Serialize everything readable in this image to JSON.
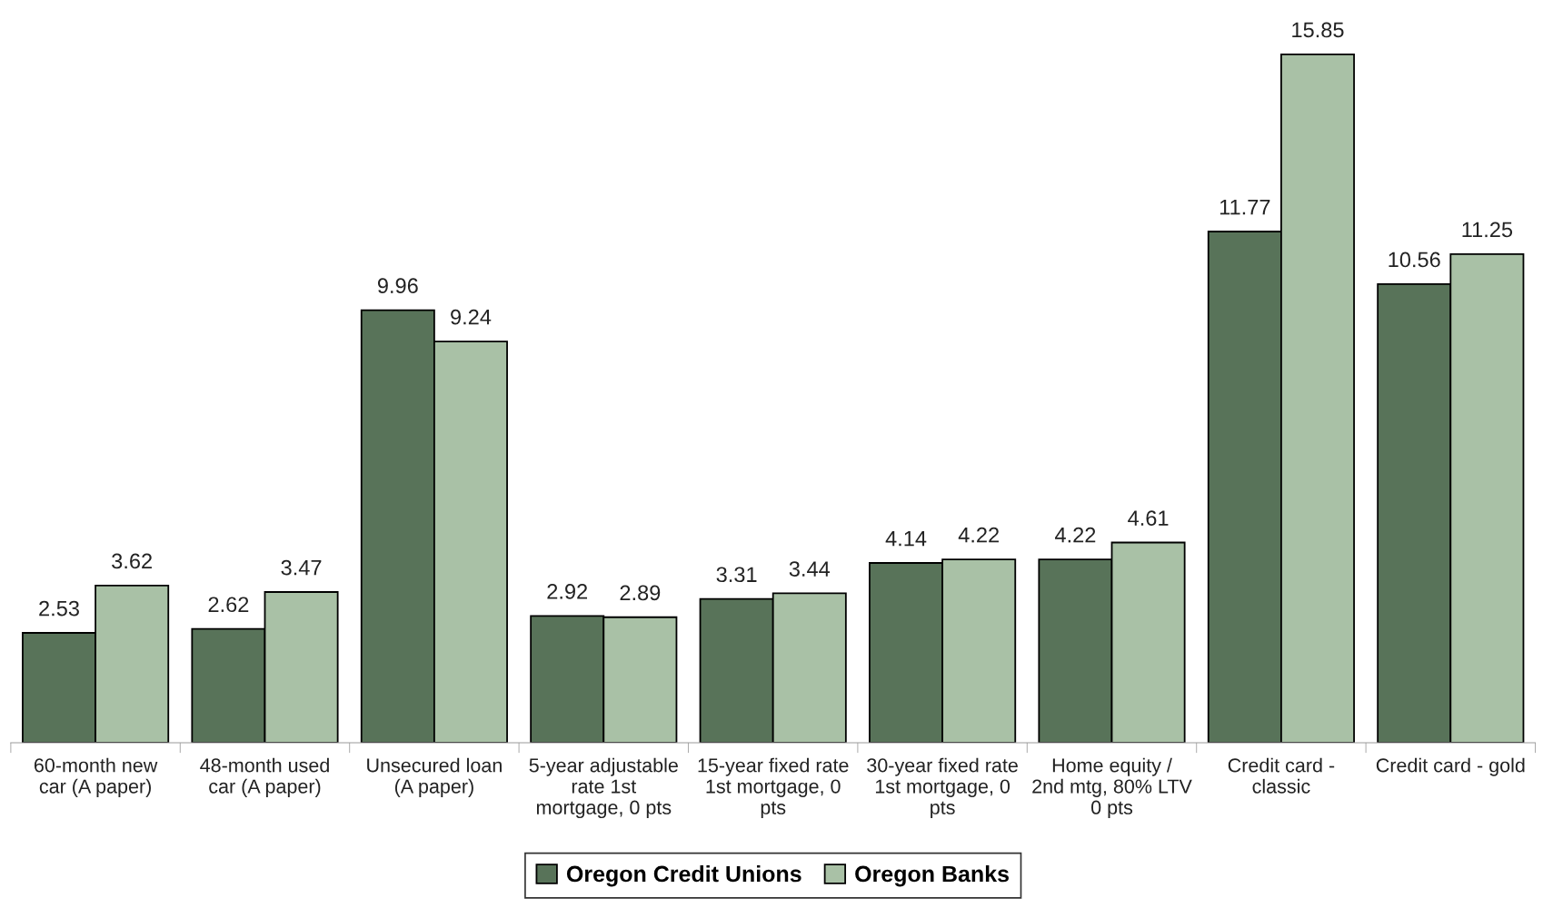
{
  "chart_data": {
    "type": "bar",
    "categories": [
      "60-month new\ncar (A paper)",
      "48-month used\ncar (A paper)",
      "Unsecured loan\n(A paper)",
      "5-year adjustable\nrate 1st\nmortgage, 0 pts",
      "15-year fixed rate\n1st mortgage, 0\npts",
      "30-year fixed rate\n1st mortgage, 0\npts",
      "Home equity /\n2nd mtg, 80% LTV\n0 pts",
      "Credit card -\nclassic",
      "Credit card - gold"
    ],
    "series": [
      {
        "name": "Oregon Credit Unions",
        "color": "#587359",
        "values": [
          2.53,
          2.62,
          9.96,
          2.92,
          3.31,
          4.14,
          4.22,
          11.77,
          10.56
        ]
      },
      {
        "name": "Oregon Banks",
        "color": "#a9c1a6",
        "values": [
          3.62,
          3.47,
          9.24,
          2.89,
          3.44,
          4.22,
          4.61,
          15.85,
          11.25
        ]
      }
    ],
    "data_labels": true,
    "legend": "bottom",
    "grid": false
  }
}
